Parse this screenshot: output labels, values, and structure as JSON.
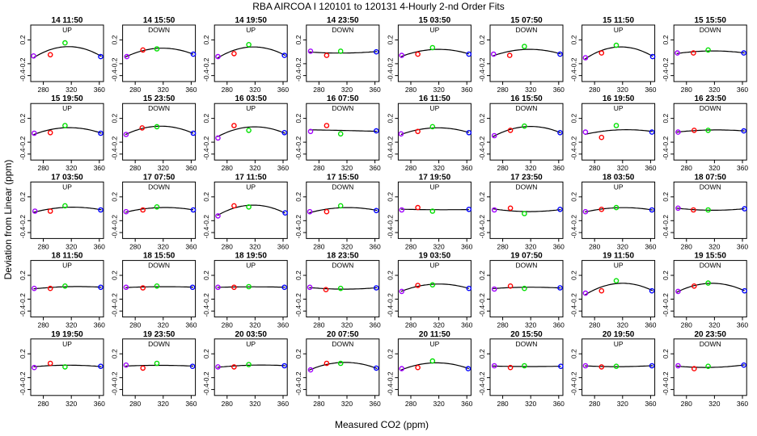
{
  "chart_data": {
    "type": "scatter",
    "title": "RBA   AIRCOA I   120101 to 120131   4-Hourly 2-nd Order Fits",
    "xlabel": "Measured CO2 (ppm)",
    "ylabel": "Deviation from Linear (ppm)",
    "xlim": [
      262,
      366
    ],
    "ylim": [
      -0.5,
      0.45
    ],
    "xticks": [
      "280",
      "320",
      "360"
    ],
    "yticks": [
      "0.2",
      "-0.2",
      "-0.4"
    ],
    "grid": false,
    "point_colors": [
      "#a000ff",
      "#ff0000",
      "#00e000",
      "#0000ff"
    ],
    "panels": [
      {
        "label": "14 11:50",
        "dir": "UP",
        "points": [
          [
            266,
            -0.07
          ],
          [
            290,
            -0.05
          ],
          [
            311,
            0.15
          ],
          [
            362,
            -0.08
          ]
        ]
      },
      {
        "label": "14 15:50",
        "dir": "DOWN",
        "points": [
          [
            268,
            -0.08
          ],
          [
            291,
            0.03
          ],
          [
            311,
            0.05
          ],
          [
            363,
            -0.04
          ]
        ]
      },
      {
        "label": "14 19:50",
        "dir": "UP",
        "points": [
          [
            267,
            -0.08
          ],
          [
            290,
            -0.03
          ],
          [
            311,
            0.12
          ],
          [
            362,
            -0.06
          ]
        ]
      },
      {
        "label": "14 23:50",
        "dir": "DOWN",
        "points": [
          [
            268,
            0.01
          ],
          [
            291,
            -0.06
          ],
          [
            311,
            0.01
          ],
          [
            362,
            0.0
          ]
        ]
      },
      {
        "label": "15 03:50",
        "dir": "UP",
        "points": [
          [
            267,
            -0.06
          ],
          [
            290,
            -0.04
          ],
          [
            311,
            0.07
          ],
          [
            363,
            -0.04
          ]
        ]
      },
      {
        "label": "15 07:50",
        "dir": "DOWN",
        "points": [
          [
            267,
            -0.04
          ],
          [
            290,
            -0.06
          ],
          [
            311,
            0.09
          ],
          [
            362,
            -0.04
          ]
        ]
      },
      {
        "label": "15 11:50",
        "dir": "UP",
        "points": [
          [
            267,
            -0.1
          ],
          [
            290,
            -0.02
          ],
          [
            311,
            0.11
          ],
          [
            363,
            -0.08
          ]
        ]
      },
      {
        "label": "15 15:50",
        "dir": "DOWN",
        "points": [
          [
            267,
            -0.02
          ],
          [
            290,
            -0.02
          ],
          [
            311,
            0.03
          ],
          [
            362,
            -0.02
          ]
        ]
      },
      {
        "label": "15 19:50",
        "dir": "UP",
        "points": [
          [
            267,
            -0.05
          ],
          [
            290,
            -0.04
          ],
          [
            311,
            0.08
          ],
          [
            362,
            -0.05
          ]
        ]
      },
      {
        "label": "15 23:50",
        "dir": "DOWN",
        "points": [
          [
            267,
            -0.07
          ],
          [
            290,
            0.04
          ],
          [
            311,
            0.06
          ],
          [
            363,
            -0.05
          ]
        ]
      },
      {
        "label": "16 03:50",
        "dir": "UP",
        "points": [
          [
            267,
            -0.13
          ],
          [
            290,
            0.08
          ],
          [
            311,
            0.0
          ],
          [
            362,
            -0.04
          ]
        ]
      },
      {
        "label": "16 07:50",
        "dir": "DOWN",
        "points": [
          [
            268,
            -0.02
          ],
          [
            291,
            0.08
          ],
          [
            311,
            -0.06
          ],
          [
            362,
            -0.01
          ]
        ]
      },
      {
        "label": "16 11:50",
        "dir": "UP",
        "points": [
          [
            266,
            -0.06
          ],
          [
            290,
            -0.02
          ],
          [
            311,
            0.06
          ],
          [
            363,
            -0.04
          ]
        ]
      },
      {
        "label": "16 15:50",
        "dir": "DOWN",
        "points": [
          [
            268,
            -0.09
          ],
          [
            291,
            0.0
          ],
          [
            311,
            0.07
          ],
          [
            362,
            -0.04
          ]
        ]
      },
      {
        "label": "16 19:50",
        "dir": "UP",
        "points": [
          [
            267,
            -0.03
          ],
          [
            290,
            -0.12
          ],
          [
            311,
            0.08
          ],
          [
            362,
            -0.03
          ]
        ]
      },
      {
        "label": "16 23:50",
        "dir": "DOWN",
        "points": [
          [
            268,
            -0.03
          ],
          [
            291,
            0.0
          ],
          [
            311,
            0.0
          ],
          [
            362,
            -0.01
          ]
        ]
      },
      {
        "label": "17 03:50",
        "dir": "UP",
        "points": [
          [
            268,
            -0.04
          ],
          [
            290,
            -0.04
          ],
          [
            311,
            0.05
          ],
          [
            362,
            -0.02
          ]
        ]
      },
      {
        "label": "17 07:50",
        "dir": "DOWN",
        "points": [
          [
            267,
            -0.05
          ],
          [
            291,
            -0.02
          ],
          [
            311,
            0.03
          ],
          [
            363,
            -0.02
          ]
        ]
      },
      {
        "label": "17 11:50",
        "dir": "UP",
        "points": [
          [
            267,
            -0.12
          ],
          [
            290,
            0.05
          ],
          [
            311,
            0.03
          ],
          [
            363,
            -0.07
          ]
        ]
      },
      {
        "label": "17 15:50",
        "dir": "DOWN",
        "points": [
          [
            267,
            -0.05
          ],
          [
            291,
            -0.05
          ],
          [
            311,
            0.05
          ],
          [
            362,
            -0.03
          ]
        ]
      },
      {
        "label": "17 19:50",
        "dir": "UP",
        "points": [
          [
            267,
            -0.02
          ],
          [
            290,
            0.02
          ],
          [
            311,
            -0.04
          ],
          [
            363,
            -0.01
          ]
        ]
      },
      {
        "label": "17 23:50",
        "dir": "DOWN",
        "points": [
          [
            268,
            -0.02
          ],
          [
            291,
            0.01
          ],
          [
            311,
            -0.08
          ],
          [
            362,
            -0.01
          ]
        ]
      },
      {
        "label": "18 03:50",
        "dir": "UP",
        "points": [
          [
            267,
            -0.05
          ],
          [
            290,
            -0.01
          ],
          [
            311,
            0.02
          ],
          [
            362,
            -0.02
          ]
        ]
      },
      {
        "label": "18 07:50",
        "dir": "DOWN",
        "points": [
          [
            268,
            0.01
          ],
          [
            290,
            -0.02
          ],
          [
            311,
            -0.02
          ],
          [
            363,
            0.0
          ]
        ]
      },
      {
        "label": "18 11:50",
        "dir": "UP",
        "points": [
          [
            267,
            -0.02
          ],
          [
            290,
            -0.02
          ],
          [
            311,
            0.02
          ],
          [
            362,
            0.0
          ]
        ]
      },
      {
        "label": "18 15:50",
        "dir": "DOWN",
        "points": [
          [
            267,
            0.0
          ],
          [
            291,
            -0.01
          ],
          [
            311,
            0.02
          ],
          [
            362,
            0.0
          ]
        ]
      },
      {
        "label": "18 19:50",
        "dir": "UP",
        "points": [
          [
            267,
            0.0
          ],
          [
            290,
            0.0
          ],
          [
            311,
            0.01
          ],
          [
            362,
            0.0
          ]
        ]
      },
      {
        "label": "18 23:50",
        "dir": "DOWN",
        "points": [
          [
            267,
            0.0
          ],
          [
            290,
            -0.04
          ],
          [
            311,
            -0.02
          ],
          [
            362,
            -0.01
          ]
        ]
      },
      {
        "label": "19 03:50",
        "dir": "UP",
        "points": [
          [
            267,
            -0.07
          ],
          [
            290,
            0.03
          ],
          [
            311,
            0.04
          ],
          [
            363,
            -0.02
          ]
        ]
      },
      {
        "label": "19 07:50",
        "dir": "DOWN",
        "points": [
          [
            268,
            -0.03
          ],
          [
            291,
            0.02
          ],
          [
            311,
            -0.02
          ],
          [
            362,
            -0.01
          ]
        ]
      },
      {
        "label": "19 11:50",
        "dir": "UP",
        "points": [
          [
            267,
            -0.1
          ],
          [
            290,
            -0.06
          ],
          [
            311,
            0.11
          ],
          [
            362,
            -0.06
          ]
        ]
      },
      {
        "label": "19 15:50",
        "dir": "DOWN",
        "points": [
          [
            268,
            -0.07
          ],
          [
            291,
            0.02
          ],
          [
            311,
            0.07
          ],
          [
            363,
            -0.06
          ]
        ]
      },
      {
        "label": "19 19:50",
        "dir": "UP",
        "points": [
          [
            267,
            -0.03
          ],
          [
            290,
            0.04
          ],
          [
            311,
            -0.02
          ],
          [
            362,
            -0.01
          ]
        ]
      },
      {
        "label": "19 23:50",
        "dir": "DOWN",
        "points": [
          [
            267,
            0.01
          ],
          [
            291,
            -0.04
          ],
          [
            311,
            0.04
          ],
          [
            362,
            -0.01
          ]
        ]
      },
      {
        "label": "20 03:50",
        "dir": "UP",
        "points": [
          [
            267,
            -0.02
          ],
          [
            290,
            -0.02
          ],
          [
            311,
            0.02
          ],
          [
            362,
            0.0
          ]
        ]
      },
      {
        "label": "20 07:50",
        "dir": "DOWN",
        "points": [
          [
            268,
            -0.07
          ],
          [
            291,
            0.04
          ],
          [
            311,
            0.04
          ],
          [
            362,
            -0.04
          ]
        ]
      },
      {
        "label": "20 11:50",
        "dir": "UP",
        "points": [
          [
            267,
            -0.05
          ],
          [
            290,
            -0.03
          ],
          [
            311,
            0.08
          ],
          [
            362,
            -0.05
          ]
        ]
      },
      {
        "label": "20 15:50",
        "dir": "DOWN",
        "points": [
          [
            268,
            0.0
          ],
          [
            291,
            -0.03
          ],
          [
            311,
            0.0
          ],
          [
            363,
            -0.01
          ]
        ]
      },
      {
        "label": "20 19:50",
        "dir": "UP",
        "points": [
          [
            267,
            0.0
          ],
          [
            290,
            -0.02
          ],
          [
            311,
            -0.01
          ],
          [
            362,
            0.0
          ]
        ]
      },
      {
        "label": "20 23:50",
        "dir": "DOWN",
        "points": [
          [
            268,
            0.0
          ],
          [
            291,
            -0.05
          ],
          [
            311,
            -0.01
          ],
          [
            362,
            0.01
          ]
        ]
      }
    ]
  }
}
